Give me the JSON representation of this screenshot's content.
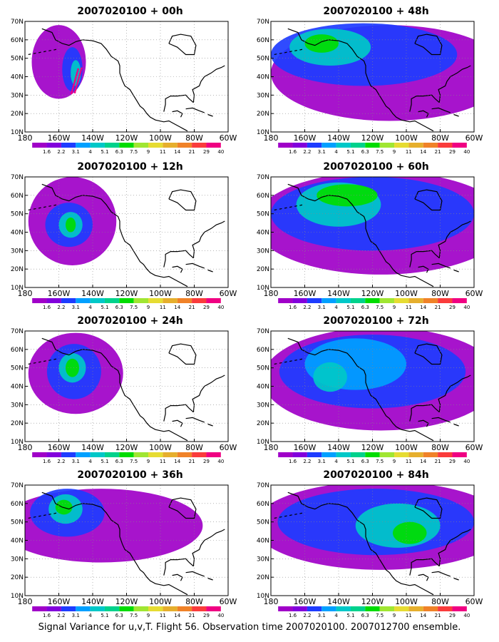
{
  "figure": {
    "caption": "Signal Variance for u,v,T. Flight 56. Observation time 2007020100. 2007012700 ensemble."
  },
  "axes": {
    "lat_labels": [
      "70N",
      "60N",
      "50N",
      "40N",
      "30N",
      "20N",
      "10N"
    ],
    "lon_labels": [
      "180",
      "160W",
      "140W",
      "120W",
      "100W",
      "80W",
      "60W"
    ]
  },
  "colorbar": {
    "labels": [
      "1.6",
      "2.2",
      "3.1",
      "4",
      "5.1",
      "6.3",
      "7.5",
      "9",
      "11",
      "14",
      "21",
      "29",
      "40"
    ],
    "colors": [
      "#a000c8",
      "#8200dc",
      "#1e3cff",
      "#00a0ff",
      "#00c8c8",
      "#00d28c",
      "#00dc00",
      "#a0e632",
      "#e6dc32",
      "#e6af2d",
      "#f08228",
      "#fa3c3c",
      "#f00082"
    ]
  },
  "land_color": "#000000",
  "panels": [
    {
      "title": "2007020100 + 00h"
    },
    {
      "title": "2007020100 + 48h"
    },
    {
      "title": "2007020100 + 12h"
    },
    {
      "title": "2007020100 + 60h"
    },
    {
      "title": "2007020100 + 24h"
    },
    {
      "title": "2007020100 + 72h"
    },
    {
      "title": "2007020100 + 36h"
    },
    {
      "title": "2007020100 + 84h"
    }
  ]
}
